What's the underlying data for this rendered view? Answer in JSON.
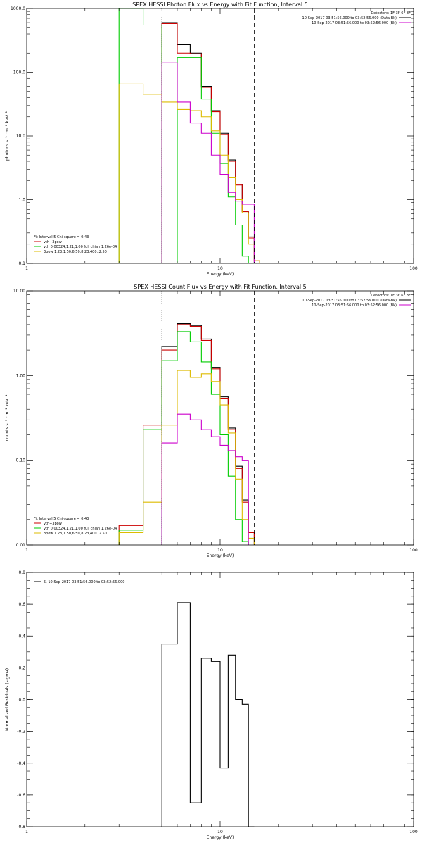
{
  "chart_data": [
    {
      "type": "line",
      "title": "SPEX HESSI Photon Flux vs Energy with Fit Function, Interval 5",
      "xlabel": "Energy (keV)",
      "ylabel": "photons s⁻¹ cm⁻² keV⁻¹",
      "xscale": "log",
      "yscale": "log",
      "xlim": [
        1,
        100
      ],
      "ylim": [
        0.1,
        1000
      ],
      "xticks": [
        {
          "v": 1,
          "label": "1"
        },
        {
          "v": 10,
          "label": "10"
        },
        {
          "v": 100,
          "label": "100"
        }
      ],
      "yticks": [
        {
          "v": 0.1,
          "label": "0.1"
        },
        {
          "v": 1,
          "label": "1.0"
        },
        {
          "v": 10,
          "label": "10.0"
        },
        {
          "v": 100,
          "label": "100.0"
        },
        {
          "v": 1000,
          "label": "1000.0"
        }
      ],
      "grid": false,
      "vlines": [
        {
          "x": 5.0,
          "style": "dotted"
        },
        {
          "x": 15.0,
          "style": "dashed"
        }
      ],
      "info_text": [
        "Detectors: 1F 3F 6F 8F",
        "10-Sep-2017 03:51:56.000 to 03:52:56.000 (Data-Bk)",
        "10-Sep-2017 03:51:56.000 to 03:52:56.000 (Bk)"
      ],
      "info_colors": [
        "#000000",
        "#cc00cc"
      ],
      "legend_heading": "Fit Interval 5   Chi-square = 0.43",
      "legend_position": "bottom-left",
      "edges": [
        3,
        4,
        5,
        6,
        7,
        8,
        9,
        10,
        11,
        12,
        13,
        14,
        15,
        16,
        17
      ],
      "series": [
        {
          "name": "",
          "color": "#000000",
          "values": [
            null,
            null,
            600,
            270,
            200,
            60,
            25,
            11,
            4.2,
            1.75,
            0.65,
            0.26,
            null,
            null
          ]
        },
        {
          "name": "vth+3pow",
          "color": "#cc0000",
          "values": [
            null,
            null,
            580,
            200,
            195,
            58,
            24,
            10.5,
            4.0,
            1.7,
            0.65,
            0.25,
            0.11,
            null
          ]
        },
        {
          "name": "vth 0.00324,1.21,1.00  full chian 1.26e-04",
          "color": "#00cc00",
          "values": [
            2000,
            550,
            null,
            170,
            170,
            38,
            11,
            3.7,
            1.1,
            0.4,
            0.13,
            0.1,
            0.1,
            null
          ]
        },
        {
          "name": "3pow 1.23,1.50,6.50,8.23,400.,2.50",
          "color": "#ddbb00",
          "values": [
            65,
            45,
            34,
            26,
            25,
            20,
            12,
            5.0,
            2.2,
            1.0,
            0.62,
            0.2,
            0.11,
            null
          ]
        },
        {
          "name": "",
          "color": "#cc00cc",
          "values": [
            null,
            null,
            140,
            34,
            16,
            11,
            5.0,
            2.5,
            1.3,
            0.95,
            0.85,
            0.85,
            null,
            null
          ]
        }
      ]
    },
    {
      "type": "line",
      "title": "SPEX HESSI Count Flux vs Energy with Fit Function, Interval 5",
      "xlabel": "Energy (keV)",
      "ylabel": "counts s⁻¹ cm⁻² keV⁻¹",
      "xscale": "log",
      "yscale": "log",
      "xlim": [
        1,
        100
      ],
      "ylim": [
        0.01,
        10
      ],
      "xticks": [
        {
          "v": 1,
          "label": "1"
        },
        {
          "v": 10,
          "label": "10"
        },
        {
          "v": 100,
          "label": "100"
        }
      ],
      "yticks": [
        {
          "v": 0.01,
          "label": "0.01"
        },
        {
          "v": 0.1,
          "label": "0.10"
        },
        {
          "v": 1,
          "label": "1.00"
        },
        {
          "v": 10,
          "label": "10.00"
        }
      ],
      "grid": false,
      "vlines": [
        {
          "x": 5.0,
          "style": "dotted"
        },
        {
          "x": 15.0,
          "style": "dashed"
        }
      ],
      "info_text": [
        "Detectors: 1F 3F 6F 8F",
        "10-Sep-2017 03:51:56.000 to 03:52:56.000 (Data-Bk)",
        "10-Sep-2017 03:51:56.000 to 03:52:56.000 (Bk)"
      ],
      "info_colors": [
        "#000000",
        "#cc00cc"
      ],
      "legend_heading": "Fit Interval 5   Chi-square = 0.43",
      "legend_position": "bottom-left",
      "edges": [
        3,
        4,
        5,
        6,
        7,
        8,
        9,
        10,
        11,
        12,
        13,
        14,
        15,
        16,
        17
      ],
      "series": [
        {
          "name": "",
          "color": "#000000",
          "values": [
            null,
            null,
            2.2,
            4.1,
            3.9,
            2.7,
            1.25,
            0.56,
            0.24,
            0.085,
            0.034,
            0.014,
            null,
            null
          ]
        },
        {
          "name": "vth+3pow",
          "color": "#cc0000",
          "values": [
            0.017,
            0.26,
            2.0,
            4.0,
            3.8,
            2.6,
            1.2,
            0.54,
            0.23,
            0.08,
            0.032,
            0.014,
            null,
            null
          ]
        },
        {
          "name": "vth 0.00324,1.21,1.00  full chian 1.26e-04",
          "color": "#00cc00",
          "values": [
            0.015,
            0.23,
            1.5,
            3.3,
            2.5,
            1.45,
            0.6,
            0.2,
            0.065,
            0.02,
            0.011,
            null,
            null,
            null
          ]
        },
        {
          "name": "3pow 1.23,1.50,6.50,8.23,400.,2.50",
          "color": "#ddbb00",
          "values": [
            0.014,
            0.032,
            0.26,
            1.15,
            0.95,
            1.05,
            0.85,
            0.45,
            0.21,
            0.06,
            0.02,
            0.012,
            null,
            null
          ]
        },
        {
          "name": "",
          "color": "#cc00cc",
          "values": [
            null,
            null,
            0.16,
            0.35,
            0.3,
            0.23,
            0.19,
            0.15,
            0.13,
            0.11,
            0.1,
            null,
            null,
            null
          ]
        }
      ]
    },
    {
      "type": "line",
      "title": "",
      "xlabel": "Energy (keV)",
      "ylabel": "Normalized Residuals (sigma)",
      "xscale": "log",
      "yscale": "linear",
      "xlim": [
        1,
        100
      ],
      "ylim": [
        -0.8,
        0.8
      ],
      "xticks": [
        {
          "v": 1,
          "label": "1"
        },
        {
          "v": 10,
          "label": "10"
        },
        {
          "v": 100,
          "label": "100"
        }
      ],
      "yticks": [
        {
          "v": -0.8,
          "label": "-0.8"
        },
        {
          "v": -0.6,
          "label": "-0.6"
        },
        {
          "v": -0.4,
          "label": "-0.4"
        },
        {
          "v": -0.2,
          "label": "-0.2"
        },
        {
          "v": 0,
          "label": "0.0"
        },
        {
          "v": 0.2,
          "label": "0.2"
        },
        {
          "v": 0.4,
          "label": "0.4"
        },
        {
          "v": 0.6,
          "label": "0.6"
        },
        {
          "v": 0.8,
          "label": "0.8"
        }
      ],
      "grid": false,
      "vlines": [],
      "info_text": [],
      "legend_heading": "",
      "legend_position": "top-left",
      "edges": [
        5,
        6,
        7,
        8,
        9,
        10,
        11,
        12,
        13,
        14,
        15
      ],
      "series": [
        {
          "name": "5, 10-Sep-2017 03:51:56.000 to 03:52:56.000",
          "color": "#000000",
          "values": [
            0.35,
            0.61,
            -0.65,
            0.26,
            0.24,
            -0.43,
            0.28,
            0.0,
            -0.03,
            -0.8
          ],
          "drop_to": -0.8
        }
      ]
    }
  ]
}
